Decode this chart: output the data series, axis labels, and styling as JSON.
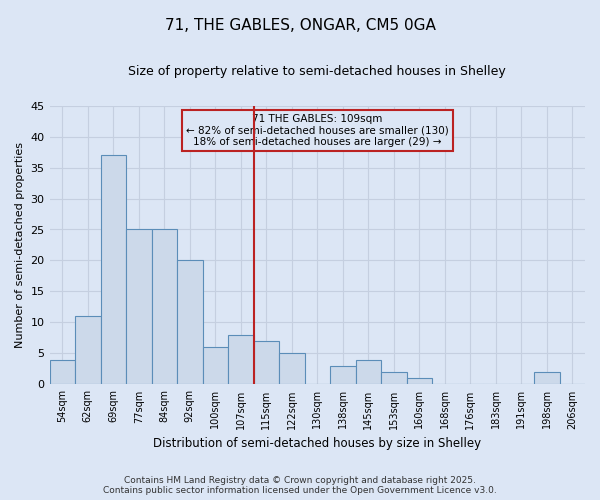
{
  "title1": "71, THE GABLES, ONGAR, CM5 0GA",
  "title2": "Size of property relative to semi-detached houses in Shelley",
  "xlabel": "Distribution of semi-detached houses by size in Shelley",
  "ylabel": "Number of semi-detached properties",
  "bar_labels": [
    "54sqm",
    "62sqm",
    "69sqm",
    "77sqm",
    "84sqm",
    "92sqm",
    "100sqm",
    "107sqm",
    "115sqm",
    "122sqm",
    "130sqm",
    "138sqm",
    "145sqm",
    "153sqm",
    "160sqm",
    "168sqm",
    "176sqm",
    "183sqm",
    "191sqm",
    "198sqm",
    "206sqm"
  ],
  "bar_values": [
    4,
    11,
    37,
    25,
    25,
    20,
    6,
    8,
    7,
    5,
    0,
    3,
    4,
    2,
    1,
    0,
    0,
    0,
    0,
    2,
    0
  ],
  "bar_color": "#ccd9ea",
  "bar_edge_color": "#5b8db8",
  "ylim": [
    0,
    45
  ],
  "yticks": [
    0,
    5,
    10,
    15,
    20,
    25,
    30,
    35,
    40,
    45
  ],
  "vline_x": 7.5,
  "vline_color": "#bb2222",
  "annotation_title": "71 THE GABLES: 109sqm",
  "annotation_line1": "← 82% of semi-detached houses are smaller (130)",
  "annotation_line2": "18% of semi-detached houses are larger (29) →",
  "annotation_box_color": "#bb2222",
  "bg_color": "#dce6f5",
  "grid_color": "#c5cfe0",
  "footnote1": "Contains HM Land Registry data © Crown copyright and database right 2025.",
  "footnote2": "Contains public sector information licensed under the Open Government Licence v3.0."
}
